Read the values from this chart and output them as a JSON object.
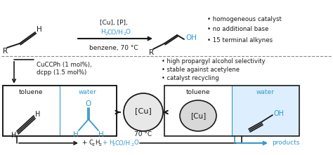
{
  "bg_color": "#ffffff",
  "black": "#1a1a1a",
  "blue": "#3399cc",
  "fig_w": 4.74,
  "fig_h": 2.21,
  "dpi": 100,
  "bullet1": "• homogeneous catalyst",
  "bullet2": "• no additional base",
  "bullet3": "• 15 terminal alkynes",
  "bullet4": "• high propargyl alcohol selectivity",
  "bullet5": "• stable against acetylene",
  "bullet6": "• catalyst recycling",
  "cuaccph_label": "CuCCPh (1 mol%),",
  "dcpp_label": "dcpp (1.5 mol%)",
  "box_left_toluene": "toluene",
  "box_left_water": "water",
  "box_right_toluene": "toluene",
  "box_right_water": "water",
  "cu_label": "[Cu]",
  "temp_label": "70 °C",
  "products_label": "products"
}
